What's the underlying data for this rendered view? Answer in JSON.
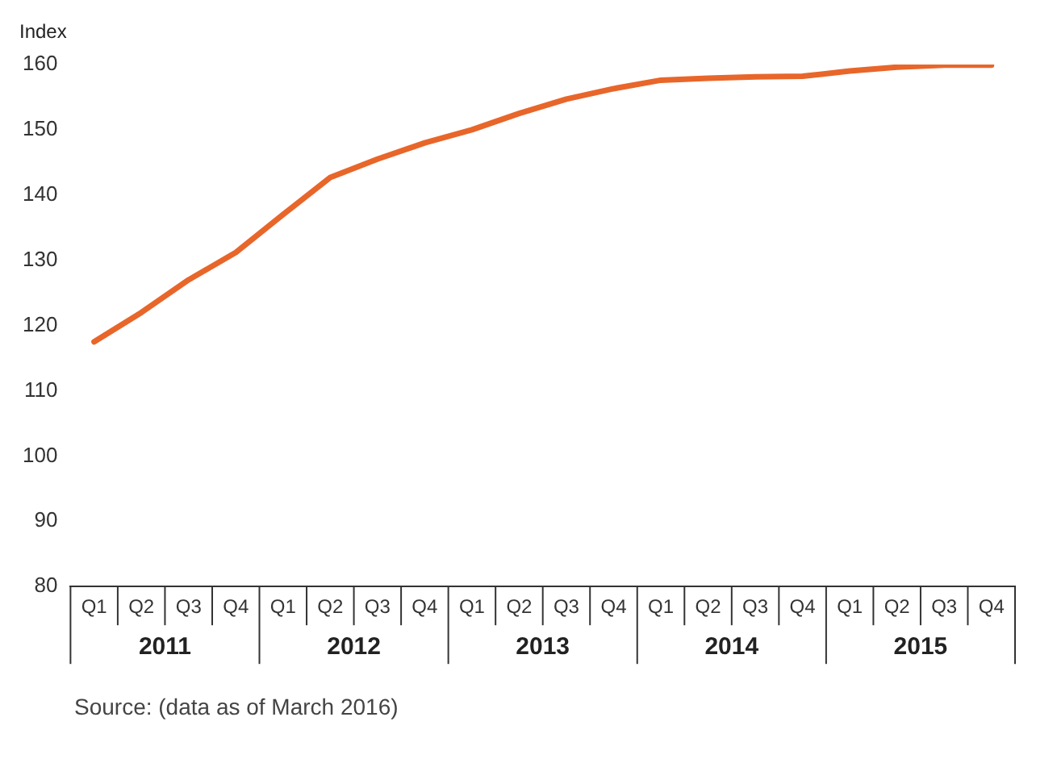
{
  "chart_data": {
    "type": "line",
    "ylabel": "Index",
    "categories": [
      "Q1",
      "Q2",
      "Q3",
      "Q4",
      "Q1",
      "Q2",
      "Q3",
      "Q4",
      "Q1",
      "Q2",
      "Q3",
      "Q4",
      "Q1",
      "Q2",
      "Q3",
      "Q4",
      "Q1",
      "Q2",
      "Q3",
      "Q4"
    ],
    "series": [
      {
        "color": "#e8662a",
        "values": [
          117.5,
          122,
          127,
          131.2,
          137,
          142.7,
          145.5,
          148,
          150,
          152.5,
          154.7,
          156.3,
          157.6,
          157.9,
          158.1,
          158.2,
          159,
          159.6,
          159.9,
          159.9
        ]
      }
    ],
    "ylim": [
      80,
      160
    ],
    "yticks": [
      80,
      90,
      100,
      110,
      120,
      130,
      140,
      150,
      160
    ],
    "grid": false,
    "legend": false,
    "marker": "none",
    "line_style": "solid",
    "annotations": [
      "2011",
      "2012",
      "2013",
      "2014",
      "2015",
      "Source: (data as of March 2016)"
    ]
  }
}
